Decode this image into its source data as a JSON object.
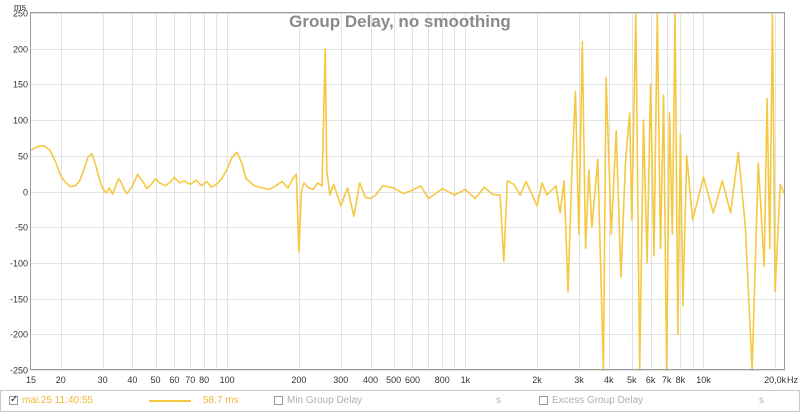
{
  "chart_data": {
    "type": "line",
    "title": "Group Delay, no smoothing",
    "ylabel": "ms",
    "xunit": "Hz",
    "xscale": "log",
    "xlim": [
      15,
      22000
    ],
    "ylim": [
      -250,
      250
    ],
    "yticks": [
      250,
      200,
      150,
      100,
      50,
      0,
      -50,
      -100,
      -150,
      -200,
      -250
    ],
    "xticks": [
      {
        "v": 15,
        "label": "15"
      },
      {
        "v": 20,
        "label": "20"
      },
      {
        "v": 30,
        "label": "30"
      },
      {
        "v": 40,
        "label": "40"
      },
      {
        "v": 50,
        "label": "50"
      },
      {
        "v": 60,
        "label": "60"
      },
      {
        "v": 70,
        "label": "70"
      },
      {
        "v": 80,
        "label": "80"
      },
      {
        "v": 100,
        "label": "100"
      },
      {
        "v": 200,
        "label": "200"
      },
      {
        "v": 300,
        "label": "300"
      },
      {
        "v": 400,
        "label": "400"
      },
      {
        "v": 500,
        "label": "500"
      },
      {
        "v": 600,
        "label": "600"
      },
      {
        "v": 800,
        "label": "800"
      },
      {
        "v": 1000,
        "label": "1k"
      },
      {
        "v": 2000,
        "label": "2k"
      },
      {
        "v": 3000,
        "label": "3k"
      },
      {
        "v": 4000,
        "label": "4k"
      },
      {
        "v": 5000,
        "label": "5k"
      },
      {
        "v": 6000,
        "label": "6k"
      },
      {
        "v": 7000,
        "label": "7k"
      },
      {
        "v": 8000,
        "label": "8k"
      },
      {
        "v": 10000,
        "label": "10k"
      },
      {
        "v": 20000,
        "label": "20,0k"
      }
    ],
    "grid": true,
    "colors": {
      "series": "#f5c842",
      "grid": "#e2e2e2",
      "frame": "#9a9a9a",
      "title": "#8a8a8a"
    },
    "series": [
      {
        "name": "mai.25 11:40:55",
        "values_xy": [
          [
            15,
            58
          ],
          [
            16,
            63
          ],
          [
            17,
            64
          ],
          [
            18,
            58
          ],
          [
            19,
            42
          ],
          [
            20,
            22
          ],
          [
            21,
            12
          ],
          [
            22,
            7
          ],
          [
            23,
            8
          ],
          [
            24,
            15
          ],
          [
            25,
            30
          ],
          [
            26,
            48
          ],
          [
            27,
            53
          ],
          [
            28,
            38
          ],
          [
            29,
            18
          ],
          [
            30,
            4
          ],
          [
            31,
            -2
          ],
          [
            32,
            5
          ],
          [
            33,
            -4
          ],
          [
            34,
            8
          ],
          [
            35,
            18
          ],
          [
            36,
            12
          ],
          [
            37,
            2
          ],
          [
            38,
            -3
          ],
          [
            40,
            8
          ],
          [
            42,
            24
          ],
          [
            44,
            15
          ],
          [
            46,
            4
          ],
          [
            48,
            10
          ],
          [
            50,
            18
          ],
          [
            52,
            12
          ],
          [
            55,
            8
          ],
          [
            58,
            14
          ],
          [
            60,
            20
          ],
          [
            63,
            12
          ],
          [
            66,
            15
          ],
          [
            70,
            10
          ],
          [
            74,
            16
          ],
          [
            78,
            8
          ],
          [
            82,
            14
          ],
          [
            86,
            6
          ],
          [
            90,
            10
          ],
          [
            95,
            18
          ],
          [
            100,
            32
          ],
          [
            105,
            48
          ],
          [
            110,
            55
          ],
          [
            115,
            40
          ],
          [
            120,
            18
          ],
          [
            130,
            8
          ],
          [
            140,
            5
          ],
          [
            150,
            3
          ],
          [
            160,
            8
          ],
          [
            170,
            14
          ],
          [
            180,
            5
          ],
          [
            190,
            20
          ],
          [
            195,
            24
          ],
          [
            200,
            -85
          ],
          [
            205,
            0
          ],
          [
            210,
            12
          ],
          [
            220,
            5
          ],
          [
            230,
            3
          ],
          [
            240,
            12
          ],
          [
            250,
            8
          ],
          [
            258,
            200
          ],
          [
            262,
            30
          ],
          [
            270,
            -5
          ],
          [
            280,
            10
          ],
          [
            300,
            -20
          ],
          [
            320,
            5
          ],
          [
            340,
            -35
          ],
          [
            360,
            12
          ],
          [
            380,
            -8
          ],
          [
            400,
            -10
          ],
          [
            420,
            -5
          ],
          [
            450,
            8
          ],
          [
            500,
            5
          ],
          [
            550,
            -3
          ],
          [
            600,
            2
          ],
          [
            650,
            8
          ],
          [
            700,
            -10
          ],
          [
            800,
            4
          ],
          [
            900,
            -5
          ],
          [
            1000,
            3
          ],
          [
            1100,
            -10
          ],
          [
            1200,
            6
          ],
          [
            1300,
            -4
          ],
          [
            1400,
            -5
          ],
          [
            1450,
            -98
          ],
          [
            1500,
            15
          ],
          [
            1600,
            10
          ],
          [
            1700,
            -5
          ],
          [
            1800,
            14
          ],
          [
            2000,
            -20
          ],
          [
            2100,
            12
          ],
          [
            2200,
            -5
          ],
          [
            2400,
            8
          ],
          [
            2500,
            -30
          ],
          [
            2600,
            15
          ],
          [
            2700,
            -140
          ],
          [
            2800,
            25
          ],
          [
            2900,
            140
          ],
          [
            3000,
            -60
          ],
          [
            3100,
            210
          ],
          [
            3200,
            -80
          ],
          [
            3300,
            30
          ],
          [
            3400,
            -50
          ],
          [
            3600,
            45
          ],
          [
            3800,
            -250
          ],
          [
            3900,
            160
          ],
          [
            4100,
            -60
          ],
          [
            4300,
            85
          ],
          [
            4500,
            -120
          ],
          [
            4700,
            40
          ],
          [
            4900,
            110
          ],
          [
            5000,
            -40
          ],
          [
            5200,
            250
          ],
          [
            5400,
            -250
          ],
          [
            5600,
            100
          ],
          [
            5800,
            -100
          ],
          [
            6000,
            150
          ],
          [
            6200,
            -90
          ],
          [
            6400,
            250
          ],
          [
            6600,
            -80
          ],
          [
            6800,
            135
          ],
          [
            7000,
            -250
          ],
          [
            7200,
            110
          ],
          [
            7400,
            -60
          ],
          [
            7600,
            250
          ],
          [
            7800,
            -200
          ],
          [
            8000,
            80
          ],
          [
            8200,
            -160
          ],
          [
            8500,
            50
          ],
          [
            9000,
            -40
          ],
          [
            10000,
            20
          ],
          [
            11000,
            -30
          ],
          [
            12000,
            15
          ],
          [
            13000,
            -30
          ],
          [
            14000,
            55
          ],
          [
            15000,
            -50
          ],
          [
            16000,
            -250
          ],
          [
            17000,
            40
          ],
          [
            18000,
            -105
          ],
          [
            18500,
            130
          ],
          [
            19000,
            -80
          ],
          [
            19500,
            250
          ],
          [
            20000,
            -140
          ],
          [
            21000,
            10
          ],
          [
            22000,
            -5
          ]
        ]
      }
    ]
  },
  "legend": {
    "series_label": "mai.25 11:40:55",
    "series_value": "58.7 ms",
    "min_label": "Min Group Delay",
    "min_unit": "s",
    "excess_label": "Excess Group Delay",
    "excess_unit": "s"
  }
}
